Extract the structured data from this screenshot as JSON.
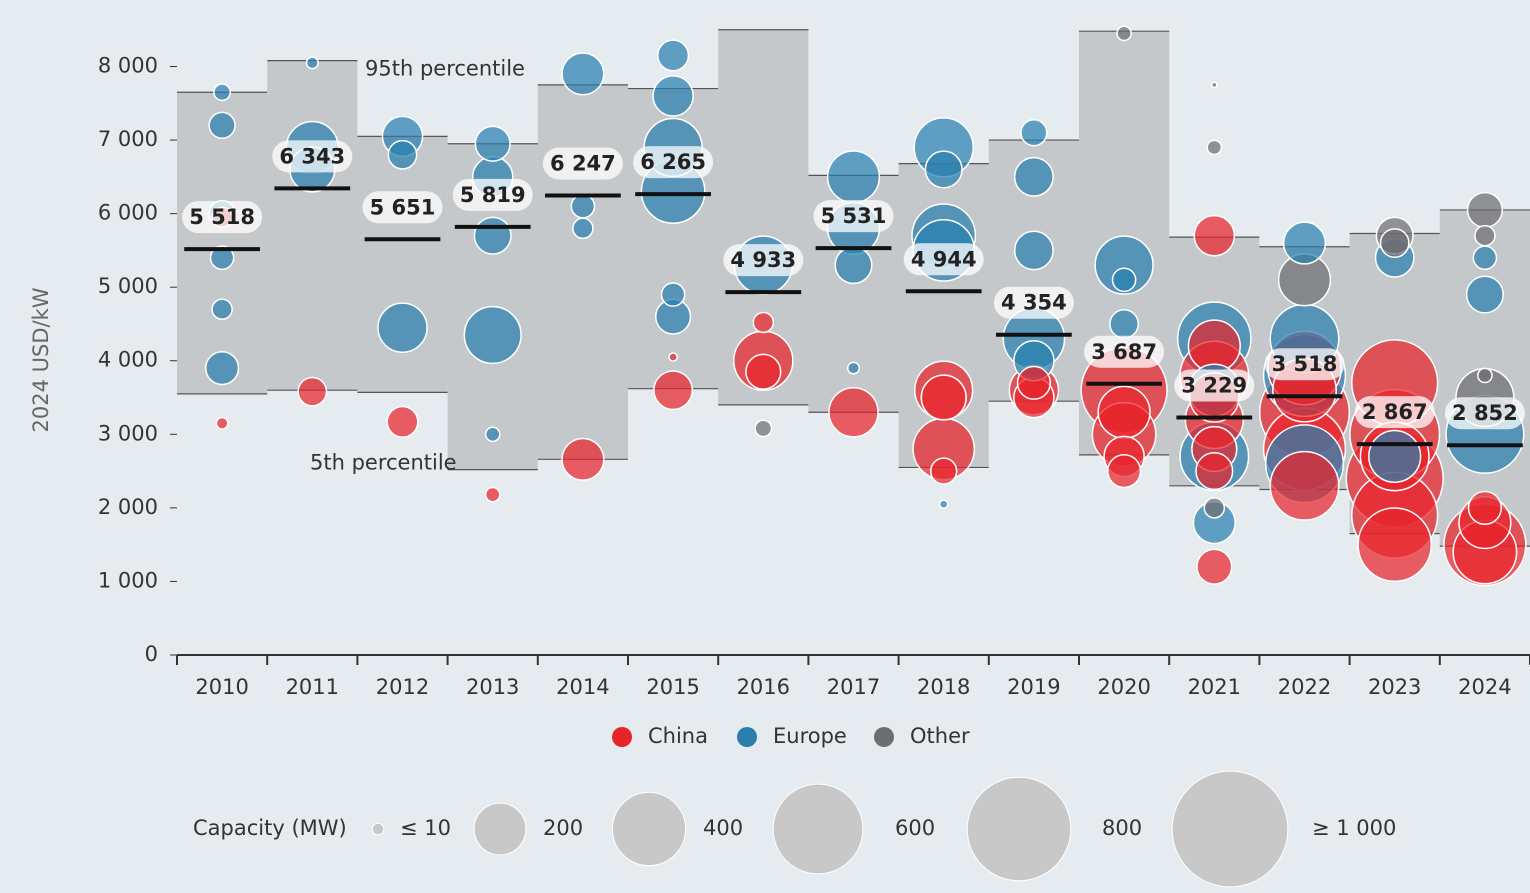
{
  "chart_data": {
    "type": "bubble",
    "y_label": "2024 USD/kW",
    "categories": [
      "2010",
      "2011",
      "2012",
      "2013",
      "2014",
      "2015",
      "2016",
      "2017",
      "2018",
      "2019",
      "2020",
      "2021",
      "2022",
      "2023",
      "2024"
    ],
    "xlim": [
      2009.5,
      2024.5
    ],
    "ylim": [
      0,
      8700
    ],
    "yticks": [
      0,
      {
        "value": 1000,
        "label": "1 000"
      },
      {
        "value": 2000,
        "label": "2 000"
      },
      {
        "value": 3000,
        "label": "3 000"
      },
      {
        "value": 4000,
        "label": "4 000"
      },
      {
        "value": 5000,
        "label": "5 000"
      },
      {
        "value": 6000,
        "label": "6 000"
      },
      {
        "value": 7000,
        "label": "7 000"
      },
      {
        "value": 8000,
        "label": "8 000"
      }
    ],
    "weighted_average": [
      5518,
      6343,
      5651,
      5819,
      6247,
      6265,
      4933,
      5531,
      4944,
      4354,
      3687,
      3229,
      3518,
      2867,
      2852
    ],
    "value_labels": [
      "5 518",
      "6 343",
      "5 651",
      "5 819",
      "6 247",
      "6 265",
      "4 933",
      "5 531",
      "4 944",
      "4 354",
      "3 687",
      "3 229",
      "3 518",
      "2 867",
      "2 852"
    ],
    "p5": [
      3550,
      3600,
      3570,
      2520,
      2660,
      3620,
      3400,
      3300,
      2550,
      3450,
      2720,
      2300,
      2250,
      1650,
      1480
    ],
    "p95": [
      7650,
      8080,
      7050,
      6950,
      7750,
      7700,
      8500,
      6520,
      6680,
      7000,
      8480,
      5680,
      5550,
      5730,
      6050
    ],
    "annotations": {
      "p95": "95th percentile",
      "p5": "5th percentile"
    },
    "series": [
      {
        "name": "China",
        "color": "#e8242b",
        "x": [
          2010,
          2010,
          2011,
          2012,
          2013,
          2014,
          2015,
          2015,
          2016,
          2016,
          2016,
          2017,
          2018,
          2018,
          2018,
          2018,
          2019,
          2019,
          2019,
          2020,
          2020,
          2020,
          2020,
          2020,
          2021,
          2021,
          2021,
          2021,
          2021,
          2021,
          2021,
          2021,
          2022,
          2022,
          2022,
          2022,
          2022,
          2023,
          2023,
          2023,
          2023,
          2023,
          2023,
          2024,
          2024,
          2024,
          2024
        ],
        "values": [
          3150,
          5950,
          3580,
          3170,
          2180,
          2660,
          3600,
          4050,
          4000,
          3850,
          4520,
          3300,
          3600,
          2800,
          2500,
          3500,
          3600,
          3500,
          3700,
          3600,
          3000,
          2700,
          3300,
          2500,
          5700,
          4200,
          3800,
          3200,
          2800,
          2500,
          1200,
          3500,
          3900,
          3300,
          2800,
          2300,
          3600,
          3700,
          3000,
          2400,
          1900,
          1500,
          2700,
          1500,
          1800,
          1400,
          2000
        ],
        "sizes": [
          10,
          30,
          60,
          70,
          15,
          130,
          110,
          5,
          260,
          90,
          30,
          180,
          250,
          280,
          50,
          150,
          180,
          120,
          80,
          550,
          300,
          120,
          200,
          80,
          120,
          200,
          350,
          250,
          150,
          100,
          90,
          180,
          400,
          600,
          500,
          350,
          300,
          550,
          600,
          700,
          550,
          400,
          350,
          500,
          200,
          300,
          80
        ]
      },
      {
        "name": "Europe",
        "color": "#2a7fb0",
        "x": [
          2010,
          2010,
          2010,
          2010,
          2010,
          2010,
          2011,
          2011,
          2011,
          2012,
          2012,
          2012,
          2013,
          2013,
          2013,
          2013,
          2013,
          2014,
          2014,
          2014,
          2015,
          2015,
          2015,
          2015,
          2015,
          2015,
          2016,
          2017,
          2017,
          2017,
          2017,
          2018,
          2018,
          2018,
          2018,
          2018,
          2019,
          2019,
          2019,
          2019,
          2019,
          2020,
          2020,
          2020,
          2021,
          2021,
          2021,
          2021,
          2022,
          2022,
          2022,
          2022,
          2023,
          2023,
          2024,
          2024,
          2024
        ],
        "values": [
          7650,
          7200,
          6000,
          5400,
          4700,
          3900,
          8050,
          6900,
          6600,
          7050,
          6800,
          4450,
          6950,
          6500,
          5700,
          4350,
          3000,
          7900,
          6100,
          5800,
          8150,
          7600,
          6900,
          6300,
          4600,
          4900,
          5300,
          6500,
          5800,
          5300,
          3900,
          6900,
          5700,
          5500,
          6600,
          2050,
          7100,
          6500,
          5500,
          4300,
          4000,
          5300,
          4500,
          5100,
          4300,
          2700,
          1800,
          3600,
          5600,
          4300,
          3800,
          2600,
          5400,
          2700,
          4900,
          3000,
          5400
        ],
        "sizes": [
          20,
          50,
          50,
          40,
          30,
          80,
          10,
          200,
          150,
          120,
          60,
          180,
          90,
          120,
          100,
          240,
          15,
          130,
          40,
          30,
          70,
          120,
          250,
          300,
          90,
          40,
          250,
          200,
          200,
          100,
          10,
          260,
          300,
          280,
          100,
          5,
          50,
          110,
          110,
          280,
          120,
          250,
          60,
          40,
          400,
          350,
          130,
          200,
          130,
          350,
          500,
          450,
          110,
          200,
          100,
          450,
          40
        ]
      },
      {
        "name": "Other",
        "color": "#6d6e71",
        "x": [
          2016,
          2020,
          2021,
          2021,
          2021,
          2022,
          2023,
          2023,
          2024,
          2024,
          2024,
          2024
        ],
        "values": [
          3080,
          8450,
          7750,
          6900,
          2000,
          5100,
          5700,
          5600,
          6050,
          3500,
          3800,
          5700
        ],
        "sizes": [
          20,
          15,
          2,
          15,
          30,
          200,
          100,
          60,
          90,
          250,
          15,
          30
        ]
      }
    ],
    "size_legend": {
      "title": "Capacity (MW)",
      "values": [
        10,
        200,
        400,
        600,
        800,
        1000
      ],
      "labels": [
        "≤ 10",
        "200",
        "400",
        "600",
        "800",
        "≥ 1 000"
      ]
    }
  }
}
